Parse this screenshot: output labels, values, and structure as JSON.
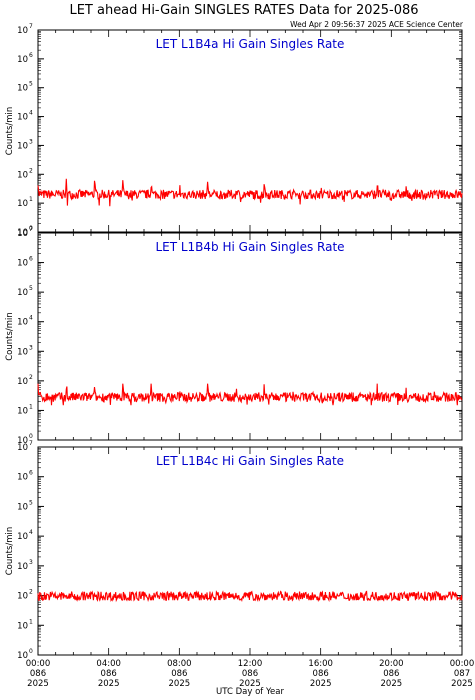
{
  "page": {
    "title": "LET ahead Hi-Gain SINGLES RATES Data for 2025-086",
    "timestamp": "Wed Apr  2 09:56:37 2025 ACE Science Center"
  },
  "colors": {
    "data": "#ff0000",
    "panel_title": "#0000cc",
    "axes": "#000000"
  },
  "chart_data": [
    {
      "type": "line",
      "title": "LET L1B4a Hi Gain Singles Rate",
      "ylabel": "Counts/min",
      "xlabel": "UTC Day of Year",
      "yscale": "log",
      "ylim": [
        1,
        10000000
      ],
      "xlim": [
        "2025-086 00:00",
        "2025-087 00:00"
      ],
      "grid": false,
      "series": [
        {
          "typical": 20,
          "range": [
            5,
            70
          ],
          "spike_period_hours": 1.6
        }
      ]
    },
    {
      "type": "line",
      "title": "LET L1B4b Hi Gain Singles Rate",
      "ylabel": "Counts/min",
      "xlabel": "UTC Day of Year",
      "yscale": "log",
      "ylim": [
        1,
        10000000
      ],
      "xlim": [
        "2025-086 00:00",
        "2025-087 00:00"
      ],
      "grid": false,
      "series": [
        {
          "typical": 28,
          "range": [
            15,
            80
          ],
          "spike_period_hours": 1.6
        }
      ]
    },
    {
      "type": "line",
      "title": "LET L1B4c Hi Gain Singles Rate",
      "ylabel": "Counts/min",
      "xlabel": "UTC Day of Year",
      "yscale": "log",
      "ylim": [
        1,
        10000000
      ],
      "xlim": [
        "2025-086 00:00",
        "2025-087 00:00"
      ],
      "grid": false,
      "series": [
        {
          "typical": 95,
          "range": [
            70,
            140
          ],
          "spike_period_hours": 0
        }
      ]
    }
  ],
  "axes": {
    "y_ticks": [
      "0",
      "1",
      "2",
      "3",
      "4",
      "5",
      "6",
      "7"
    ],
    "x_ticks": [
      {
        "time": "00:00",
        "day": "086",
        "year": "2025"
      },
      {
        "time": "04:00",
        "day": "086",
        "year": "2025"
      },
      {
        "time": "08:00",
        "day": "086",
        "year": "2025"
      },
      {
        "time": "12:00",
        "day": "086",
        "year": "2025"
      },
      {
        "time": "16:00",
        "day": "086",
        "year": "2025"
      },
      {
        "time": "20:00",
        "day": "086",
        "year": "2025"
      },
      {
        "time": "00:00",
        "day": "087",
        "year": "2025"
      }
    ],
    "ylabel": "Counts/min",
    "xlabel": "UTC Day of Year"
  }
}
